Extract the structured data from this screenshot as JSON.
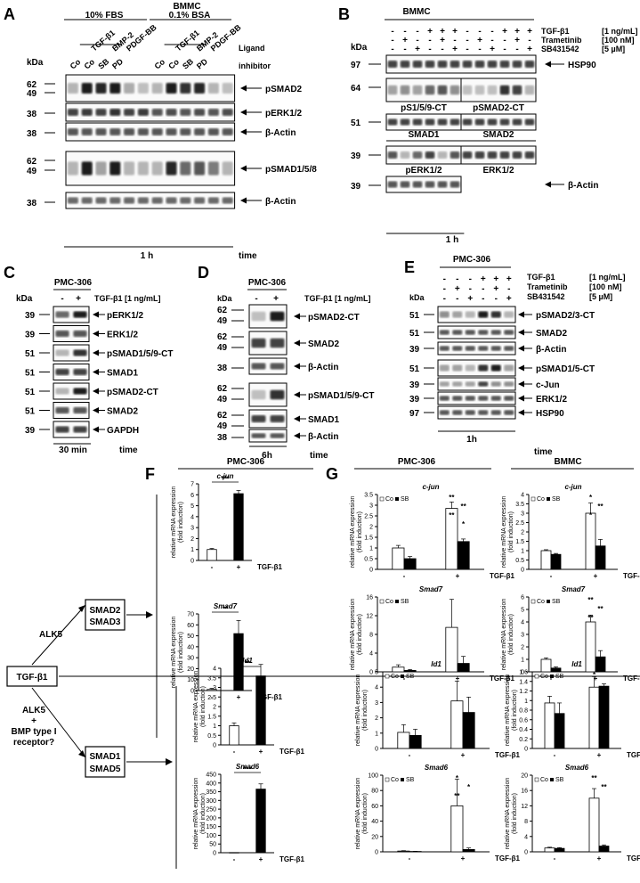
{
  "panelA": {
    "letter": "A",
    "cell": "BMMC",
    "conditions": [
      "10% FBS",
      "0.1% BSA"
    ],
    "ligands": [
      "TGF-β1",
      "BMP-2",
      "PDGF-BB",
      "TGF-β1",
      "BMP-2",
      "PDGF-BB"
    ],
    "lanes": [
      "Co",
      "Co",
      "SB",
      "PD",
      "",
      "",
      "Co",
      "Co",
      "SB",
      "PD",
      "",
      ""
    ],
    "ligand_label": "Ligand",
    "inhibitor_label": "inhibitor",
    "kda": "kDa",
    "mw": [
      "62",
      "49",
      "38",
      "38",
      "62",
      "49",
      "38"
    ],
    "blots": [
      "pSMAD2",
      "pERK1/2",
      "β-Actin",
      "pSMAD1/5/8",
      "β-Actin"
    ],
    "time": "1 h",
    "time_label": "time"
  },
  "panelB": {
    "letter": "B",
    "cell": "BMMC",
    "treatments": [
      {
        "label": "TGF-β1",
        "dose": "[1 ng/mL]",
        "signs": [
          "-",
          "-",
          "-",
          "+",
          "+",
          "+",
          "-",
          "-",
          "-",
          "+",
          "+",
          "+"
        ]
      },
      {
        "label": "Trametinib",
        "dose": "[100 nM]",
        "signs": [
          "-",
          "+",
          "-",
          "-",
          "+",
          "-",
          "-",
          "+",
          "-",
          "-",
          "+",
          "-"
        ]
      },
      {
        "label": "SB431542",
        "dose": "[5 µM]",
        "signs": [
          "-",
          "-",
          "+",
          "-",
          "-",
          "+",
          "-",
          "-",
          "+",
          "-",
          "-",
          "+"
        ]
      }
    ],
    "kda": "kDa",
    "mw": [
      "97",
      "64",
      "51",
      "39",
      "39"
    ],
    "hsp90": "HSP90",
    "inner": [
      "pS1/5/9-CT",
      "pSMAD2-CT",
      "SMAD1",
      "SMAD2",
      "pERK1/2",
      "ERK1/2"
    ],
    "actin": "β-Actin",
    "time": "1 h"
  },
  "panelC": {
    "letter": "C",
    "cell": "PMC-306",
    "signs": [
      "-",
      "+"
    ],
    "treatment": "TGF-β1 [1 ng/mL]",
    "kda": "kDa",
    "rows": [
      {
        "mw": "39",
        "label": "pERK1/2"
      },
      {
        "mw": "39",
        "label": "ERK1/2"
      },
      {
        "mw": "51",
        "label": "pSMAD1/5/9-CT"
      },
      {
        "mw": "51",
        "label": "SMAD1"
      },
      {
        "mw": "51",
        "label": "pSMAD2-CT"
      },
      {
        "mw": "51",
        "label": "SMAD2"
      },
      {
        "mw": "39",
        "label": "GAPDH"
      }
    ],
    "time": "30 min",
    "time_label": "time"
  },
  "panelD": {
    "letter": "D",
    "cell": "PMC-306",
    "signs": [
      "-",
      "+"
    ],
    "treatment": "TGF-β1 [1 ng/mL]",
    "kda": "kDa",
    "rows": [
      {
        "mw": [
          "62",
          "49"
        ],
        "label": "pSMAD2-CT"
      },
      {
        "mw": [
          "62",
          "49"
        ],
        "label": "SMAD2"
      },
      {
        "mw": [
          "38"
        ],
        "label": "β-Actin"
      },
      {
        "mw": [
          "62",
          "49"
        ],
        "label": "pSMAD1/5/9-CT"
      },
      {
        "mw": [
          "62",
          "49"
        ],
        "label": "SMAD1"
      },
      {
        "mw": [
          "38"
        ],
        "label": "β-Actin"
      }
    ],
    "time": "6h",
    "time_label": "time"
  },
  "panelE": {
    "letter": "E",
    "cell": "PMC-306",
    "treatments": [
      {
        "label": "TGF-β1",
        "dose": "[1 ng/mL]",
        "signs": [
          "-",
          "-",
          "-",
          "+",
          "+",
          "+"
        ]
      },
      {
        "label": "Trametinib",
        "dose": "[100 nM]",
        "signs": [
          "-",
          "+",
          "-",
          "-",
          "+",
          "-"
        ]
      },
      {
        "label": "SB431542",
        "dose": "[5 µM]",
        "signs": [
          "-",
          "-",
          "+",
          "-",
          "-",
          "+"
        ]
      }
    ],
    "kda": "kDa",
    "rows": [
      {
        "mw": "51",
        "label": "pSMAD2/3-CT"
      },
      {
        "mw": "51",
        "label": "SMAD2"
      },
      {
        "mw": "39",
        "label": "β-Actin"
      },
      {
        "mw": "51",
        "label": "pSMAD1/5-CT"
      },
      {
        "mw": "39",
        "label": "c-Jun"
      },
      {
        "mw": "39",
        "label": "ERK1/2"
      },
      {
        "mw": "97",
        "label": "HSP90"
      }
    ],
    "time": "1h",
    "time_label": "time"
  },
  "pathway": {
    "tgf": "TGF-β1",
    "alk5": "ALK5",
    "alk5_bmp": [
      "ALK5",
      "+",
      "BMP type I",
      "receptor?"
    ],
    "smad23": [
      "SMAD2",
      "SMAD3"
    ],
    "smad15": [
      "SMAD1",
      "SMAD5"
    ]
  },
  "panelF": {
    "letter": "F",
    "cell": "PMC-306"
  },
  "panelG": {
    "letter": "G",
    "cells": [
      "PMC-306",
      "BMMC"
    ]
  },
  "chart_common": {
    "ylabel": [
      "relative mRNA expression",
      "(fold induction)"
    ],
    "x_signs": [
      "-",
      "+"
    ],
    "xlabel": "TGF-β1",
    "legend": [
      "Co",
      "SB"
    ]
  },
  "chart_data": [
    {
      "id": "F-cjun",
      "type": "bar",
      "gene": "c-jun",
      "ylim": [
        0,
        7
      ],
      "ticks": [
        0,
        1,
        2,
        3,
        4,
        5,
        6,
        7
      ],
      "series": [
        {
          "values": [
            1.0,
            6.1
          ],
          "err": [
            0.1,
            0.3
          ]
        }
      ],
      "sig": [
        "***"
      ],
      "x": 223,
      "y": 543,
      "w": 60,
      "h": 86
    },
    {
      "id": "F-smad7",
      "type": "bar",
      "gene": "Smad7",
      "ylim": [
        0,
        70
      ],
      "ticks": [
        0,
        10,
        20,
        30,
        40,
        50,
        60,
        70
      ],
      "series": [
        {
          "values": [
            1.0,
            52
          ]
        }
      ],
      "err": [
        1,
        12
      ],
      "sig": [
        "**"
      ],
      "x": 223,
      "y": 689,
      "w": 60,
      "h": 86
    },
    {
      "id": "G-pmc-cjun",
      "type": "bar",
      "gene": "c-jun",
      "ylim": [
        0,
        3.5
      ],
      "ticks": [
        0,
        0.5,
        1,
        1.5,
        2,
        2.5,
        3,
        3.5
      ],
      "series": [
        {
          "name": "Co",
          "values": [
            1.0,
            2.85
          ]
        },
        {
          "name": "SB",
          "values": [
            0.5,
            1.3
          ]
        }
      ],
      "err": [
        [
          0.12,
          0.3
        ],
        [
          0.1,
          0.12
        ]
      ],
      "sig": [
        "**",
        "**",
        "**",
        "*"
      ],
      "x": 424,
      "y": 555,
      "w": 120,
      "h": 84
    },
    {
      "id": "G-bmmc-cjun",
      "type": "bar",
      "gene": "c-jun",
      "ylim": [
        0,
        4
      ],
      "ticks": [
        0,
        0.5,
        1,
        1.5,
        2,
        2.5,
        3,
        3.5,
        4
      ],
      "series": [
        {
          "name": "Co",
          "values": [
            1.0,
            3.0
          ]
        },
        {
          "name": "SB",
          "values": [
            0.8,
            1.25
          ]
        }
      ],
      "err": [
        [
          0.05,
          0.55
        ],
        [
          0.05,
          0.35
        ]
      ],
      "sig": [
        "*",
        "**",
        "*"
      ],
      "x": 594,
      "y": 555,
      "w": 100,
      "h": 84
    },
    {
      "id": "G-pmc-smad7",
      "type": "bar",
      "gene": "Smad7",
      "ylim": [
        0,
        16
      ],
      "ticks": [
        0,
        4,
        8,
        12,
        16
      ],
      "series": [
        {
          "name": "Co",
          "values": [
            1.0,
            9.5
          ]
        },
        {
          "name": "SB",
          "values": [
            0.3,
            1.8
          ]
        }
      ],
      "err": [
        [
          0.5,
          6
        ],
        [
          0.2,
          1.5
        ]
      ],
      "sig": [],
      "x": 424,
      "y": 670,
      "w": 120,
      "h": 84
    },
    {
      "id": "G-bmmc-smad7",
      "type": "bar",
      "gene": "Smad7",
      "ylim": [
        0,
        6
      ],
      "ticks": [
        0,
        1,
        2,
        3,
        4,
        5,
        6
      ],
      "series": [
        {
          "name": "Co",
          "values": [
            1.0,
            4.0
          ]
        },
        {
          "name": "SB",
          "values": [
            0.3,
            1.2
          ]
        }
      ],
      "err": [
        [
          0.12,
          0.55
        ],
        [
          0.1,
          0.5
        ]
      ],
      "sig": [
        "**",
        "**",
        "**"
      ],
      "x": 594,
      "y": 670,
      "w": 100,
      "h": 84
    },
    {
      "id": "F-id1",
      "type": "bar",
      "gene": "Id1",
      "ylim": [
        0,
        4
      ],
      "ticks": [
        0,
        0.5,
        1,
        1.5,
        2,
        2.5,
        3,
        3.5,
        4
      ],
      "series": [
        {
          "values": [
            1.0,
            3.6
          ]
        }
      ],
      "err": [
        0.15,
        0.6
      ],
      "sig": [
        "**"
      ],
      "x": 248,
      "y": 750,
      "w": 60,
      "h": 86
    },
    {
      "id": "F-smad6",
      "type": "bar",
      "gene": "Smad6",
      "ylim": [
        0,
        450
      ],
      "ticks": [
        0,
        50,
        100,
        150,
        200,
        250,
        300,
        350,
        400,
        450
      ],
      "series": [
        {
          "values": [
            1.0,
            365
          ]
        }
      ],
      "err": [
        0,
        30
      ],
      "sig": [
        "***"
      ],
      "x": 248,
      "y": 869,
      "w": 60,
      "h": 88
    },
    {
      "id": "G-pmc-id1",
      "type": "bar",
      "gene": "Id1",
      "ylim": [
        0,
        5
      ],
      "ticks": [
        0,
        1,
        2,
        3,
        4,
        5
      ],
      "series": [
        {
          "name": "Co",
          "values": [
            1.05,
            3.1
          ]
        },
        {
          "name": "SB",
          "values": [
            0.85,
            2.35
          ]
        }
      ],
      "err": [
        [
          0.5,
          1.3
        ],
        [
          0.4,
          1.0
        ]
      ],
      "sig": [],
      "x": 430,
      "y": 754,
      "w": 120,
      "h": 86
    },
    {
      "id": "G-bmmc-id1",
      "type": "bar",
      "gene": "Id1",
      "ylim": [
        0,
        1.6
      ],
      "ticks": [
        0,
        0.2,
        0.4,
        0.6,
        0.8,
        1,
        1.2,
        1.4,
        1.6
      ],
      "series": [
        {
          "name": "Co",
          "values": [
            0.95,
            1.28
          ]
        },
        {
          "name": "SB",
          "values": [
            0.73,
            1.3
          ]
        }
      ],
      "err": [
        [
          0.14,
          0.22
        ],
        [
          0.22,
          0.05
        ]
      ],
      "sig": [
        "*"
      ],
      "x": 598,
      "y": 754,
      "w": 100,
      "h": 86
    },
    {
      "id": "G-pmc-smad6",
      "type": "bar",
      "gene": "Smad6",
      "ylim": [
        0,
        100
      ],
      "ticks": [
        0,
        20,
        40,
        60,
        80,
        100
      ],
      "series": [
        {
          "name": "Co",
          "values": [
            1.0,
            60
          ]
        },
        {
          "name": "SB",
          "values": [
            0.5,
            3
          ]
        }
      ],
      "err": [
        [
          0.5,
          35
        ],
        [
          0.2,
          2
        ]
      ],
      "sig": [
        "*",
        "*",
        "**"
      ],
      "x": 430,
      "y": 870,
      "w": 120,
      "h": 86
    },
    {
      "id": "G-bmmc-smad6",
      "type": "bar",
      "gene": "Smad6",
      "ylim": [
        0,
        20
      ],
      "ticks": [
        0,
        4,
        8,
        12,
        16,
        20
      ],
      "series": [
        {
          "name": "Co",
          "values": [
            1.0,
            14.0
          ]
        },
        {
          "name": "SB",
          "values": [
            0.9,
            1.5
          ]
        }
      ],
      "err": [
        [
          0.2,
          2.5
        ],
        [
          0.2,
          0.3
        ]
      ],
      "sig": [
        "**",
        "**"
      ],
      "x": 598,
      "y": 870,
      "w": 100,
      "h": 86
    }
  ]
}
